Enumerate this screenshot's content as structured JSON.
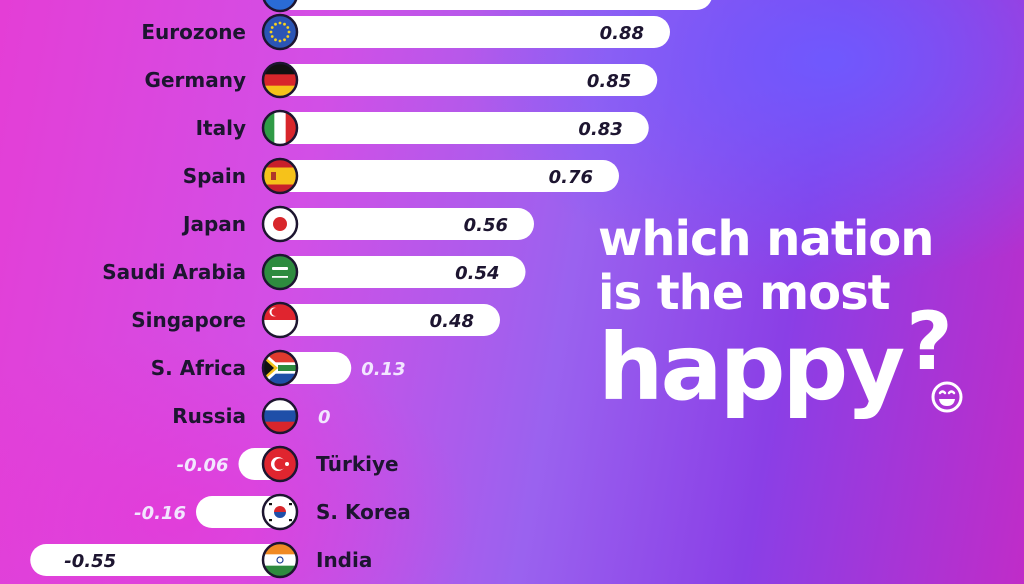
{
  "title": {
    "line1": "which nation",
    "line2": "is the most",
    "line3": "happy",
    "mark": "?"
  },
  "chart_data": {
    "type": "bar",
    "categories": [
      "Eurozone",
      "Germany",
      "Italy",
      "Spain",
      "Japan",
      "Saudi Arabia",
      "Singapore",
      "S. Africa",
      "Russia",
      "Türkiye",
      "S. Korea",
      "India"
    ],
    "values": [
      0.88,
      0.85,
      0.83,
      0.76,
      0.56,
      0.54,
      0.48,
      0.13,
      0,
      -0.06,
      -0.16,
      -0.55
    ],
    "value_labels": [
      "0.88",
      "0.85",
      "0.83",
      "0.76",
      "0.56",
      "0.54",
      "0.48",
      "0.13",
      "0",
      "-0.06",
      "-0.16",
      "-0.55"
    ],
    "flags": [
      "eu-flag-icon",
      "germany-flag-icon",
      "italy-flag-icon",
      "spain-flag-icon",
      "japan-flag-icon",
      "saudi-arabia-flag-icon",
      "singapore-flag-icon",
      "south-africa-flag-icon",
      "russia-flag-icon",
      "turkiye-flag-icon",
      "south-korea-flag-icon",
      "india-flag-icon"
    ],
    "orientation": "horizontal",
    "grid": false,
    "legend": "none",
    "colors": {
      "bar": "#ffffff",
      "label": "#1d1530",
      "outside_value": "#f2e6ff"
    }
  }
}
